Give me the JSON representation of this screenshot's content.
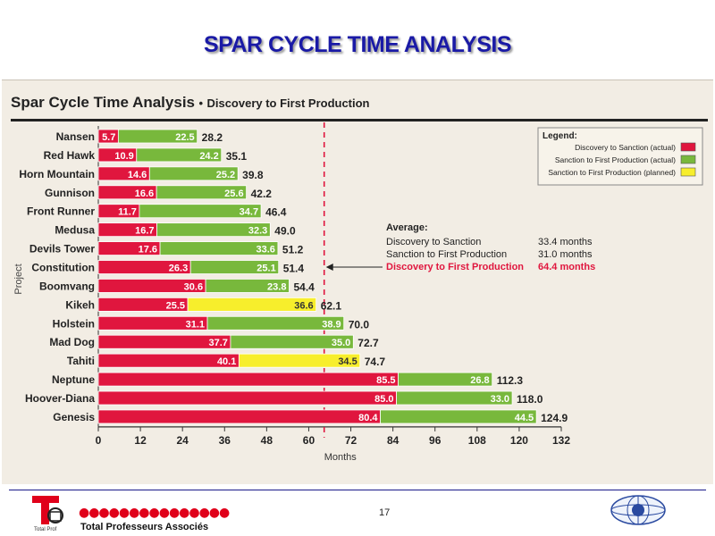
{
  "slide": {
    "title": "SPAR CYCLE TIME ANALYSIS",
    "page_number": "17",
    "company": "Total Professeurs Associés",
    "dots": "●●●●●●●●●●●●●●●",
    "logo_caption": "Total Prof"
  },
  "chart_data": {
    "type": "bar",
    "orientation": "horizontal",
    "stacked": true,
    "title": "Spar Cycle Time Analysis",
    "subtitle": "Discovery to First Production",
    "title_separator": "•",
    "xlabel": "Months",
    "ylabel": "Project",
    "xlim": [
      0,
      132
    ],
    "xticks": [
      0,
      12,
      24,
      36,
      48,
      60,
      72,
      84,
      96,
      108,
      120,
      132
    ],
    "average_line": 64.4,
    "categories": [
      "Nansen",
      "Red Hawk",
      "Horn Mountain",
      "Gunnison",
      "Front Runner",
      "Medusa",
      "Devils Tower",
      "Constitution",
      "Boomvang",
      "Kikeh",
      "Holstein",
      "Mad Dog",
      "Tahiti",
      "Neptune",
      "Hoover-Diana",
      "Genesis"
    ],
    "discovery_to_sanction": [
      5.7,
      10.9,
      14.6,
      16.6,
      11.7,
      16.7,
      17.6,
      26.3,
      30.6,
      25.5,
      31.1,
      37.7,
      40.1,
      85.5,
      85.0,
      80.4
    ],
    "sanction_to_first_production": [
      22.5,
      24.2,
      25.2,
      25.6,
      34.7,
      32.3,
      33.6,
      25.1,
      23.8,
      36.6,
      38.9,
      35.0,
      34.5,
      26.8,
      33.0,
      44.5
    ],
    "second_segment_status": [
      "actual",
      "actual",
      "actual",
      "actual",
      "actual",
      "actual",
      "actual",
      "actual",
      "actual",
      "planned",
      "actual",
      "actual",
      "planned",
      "actual",
      "actual",
      "actual"
    ],
    "totals": [
      "28.2",
      "35.1",
      "39.8",
      "42.2",
      "46.4",
      "49.0",
      "51.2",
      "51.4",
      "54.4",
      "62.1",
      "70.0",
      "72.7",
      "74.7",
      "112.3",
      "118.0",
      "124.9"
    ],
    "legend": {
      "title": "Legend:",
      "position": "top-right",
      "items": [
        {
          "label": "Discovery to Sanction (actual)",
          "color": "#e0163e"
        },
        {
          "label": "Sanction to First Production (actual)",
          "color": "#78b83c"
        },
        {
          "label": "Sanction to First Production (planned)",
          "color": "#f7ee2c"
        }
      ]
    },
    "annotation": {
      "title": "Average:",
      "rows": [
        {
          "label": "Discovery to Sanction",
          "value": "33.4 months",
          "highlight": false
        },
        {
          "label": "Sanction to First Production",
          "value": "31.0 months",
          "highlight": false
        },
        {
          "label": "Discovery to First Production",
          "value": "64.4 months",
          "highlight": true
        }
      ]
    },
    "colors": {
      "red": "#e0163e",
      "green": "#78b83c",
      "yellow": "#f7ee2c",
      "highlight_text": "#e0163e",
      "average_line": "#e0163e"
    }
  }
}
